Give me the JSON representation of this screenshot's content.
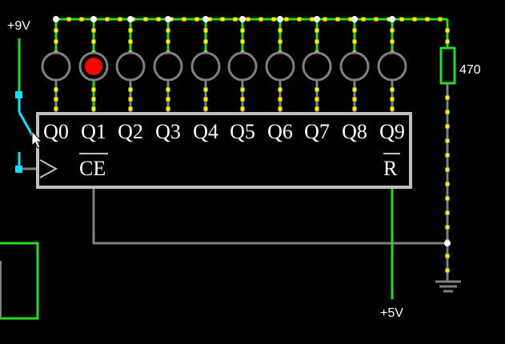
{
  "colors": {
    "background": "#000000",
    "wire_high": "#22dd22",
    "wire_low": "#808080",
    "wire_switch": "#00e5ff",
    "current_dot": "#ffee00",
    "node_dot": "#ffffff",
    "led_on": "#ff0000",
    "led_ring": "#808080",
    "chip_outline": "#c0c0c0"
  },
  "power": {
    "vcc_label": "+9V",
    "logic_label": "+5V"
  },
  "resistor": {
    "value_label": "470"
  },
  "chip": {
    "outputs": [
      "Q0",
      "Q1",
      "Q2",
      "Q3",
      "Q4",
      "Q5",
      "Q6",
      "Q7",
      "Q8",
      "Q9"
    ],
    "clock_enable": "CE",
    "reset": "R"
  },
  "leds": {
    "states": [
      false,
      true,
      false,
      false,
      false,
      false,
      false,
      false,
      false,
      false
    ]
  },
  "icons": {
    "cursor": "mouse-pointer-icon",
    "ground": "ground-icon",
    "switch": "switch-icon",
    "clock": "clock-input-icon"
  }
}
